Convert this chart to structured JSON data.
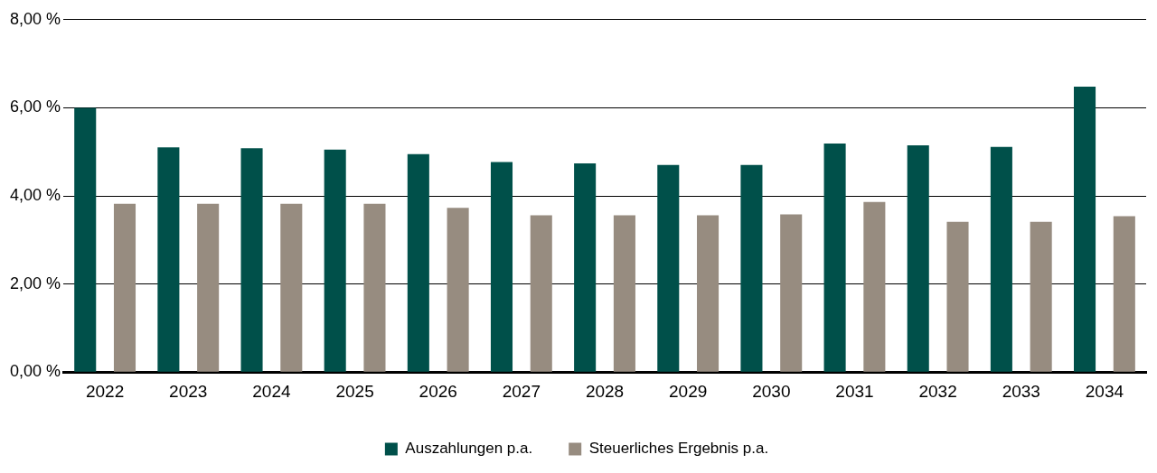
{
  "chart_data": {
    "type": "bar",
    "categories": [
      "2022",
      "2023",
      "2024",
      "2025",
      "2026",
      "2027",
      "2028",
      "2029",
      "2030",
      "2031",
      "2032",
      "2033",
      "2034"
    ],
    "series": [
      {
        "name": "Auszahlungen p.a.",
        "color": "#00504a",
        "values": [
          6.0,
          5.1,
          5.08,
          5.05,
          4.95,
          4.77,
          4.74,
          4.7,
          4.7,
          5.19,
          5.15,
          5.11,
          6.48
        ]
      },
      {
        "name": "Steuerliches Ergebnis p.a.",
        "color": "#978c80",
        "values": [
          3.82,
          3.82,
          3.82,
          3.82,
          3.73,
          3.56,
          3.56,
          3.56,
          3.58,
          3.86,
          3.41,
          3.41,
          3.54
        ]
      }
    ],
    "ylim": [
      0,
      8
    ],
    "yticks": [
      {
        "value": 0,
        "label": "0,00 %"
      },
      {
        "value": 2,
        "label": "2,00 %"
      },
      {
        "value": 4,
        "label": "4,00 %"
      },
      {
        "value": 6,
        "label": "6,00 %"
      },
      {
        "value": 8,
        "label": "8,00 %"
      }
    ],
    "grid": "y",
    "legend": "bottom"
  }
}
